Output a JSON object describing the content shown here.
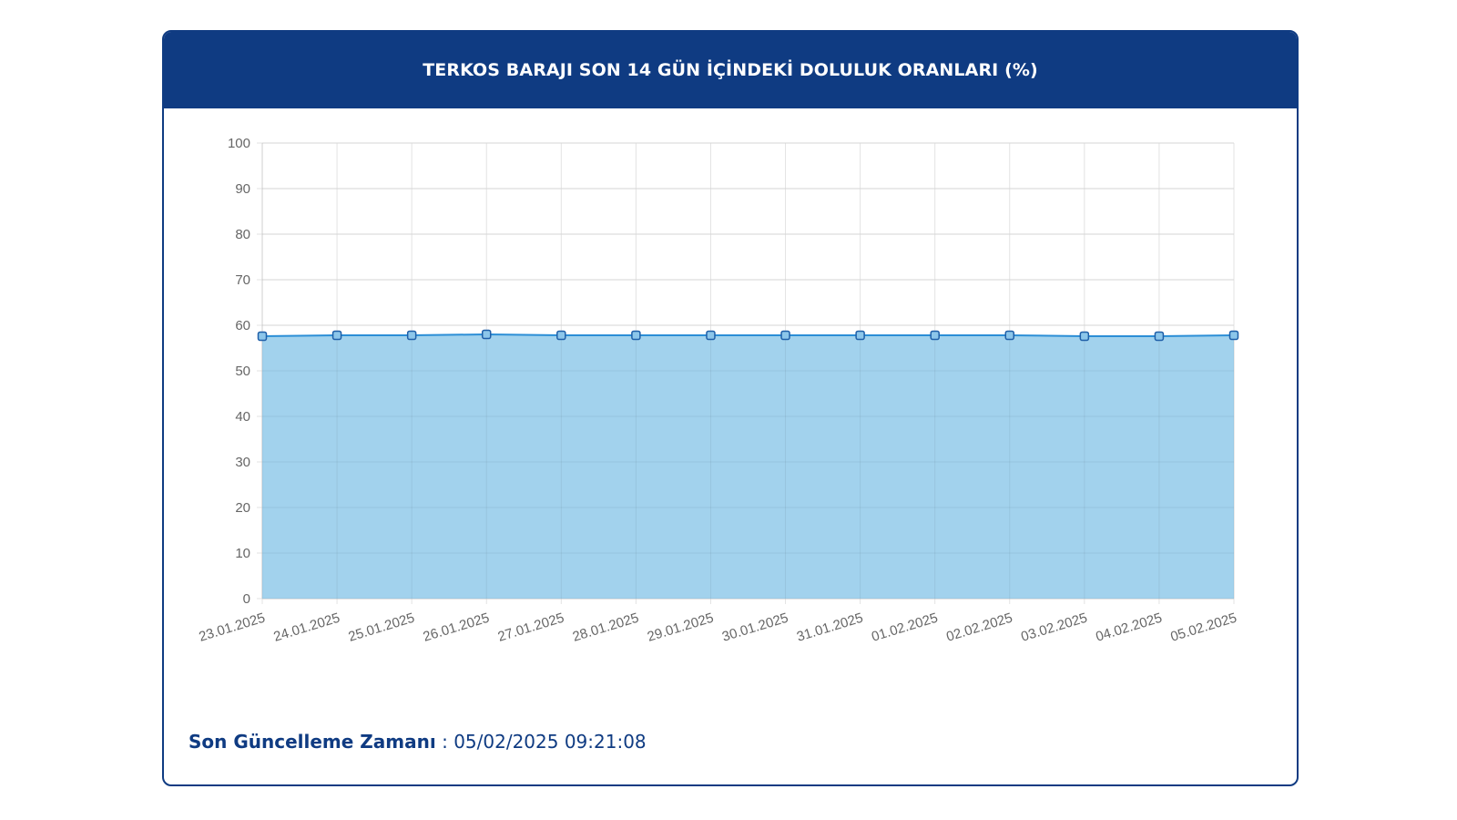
{
  "header": {
    "title": "TERKOS BARAJI SON 14 GÜN İÇİNDEKİ DOLULUK ORANLARI (%)"
  },
  "footer": {
    "label": "Son Güncelleme Zamanı",
    "separator": " : ",
    "value": "05/02/2025 09:21:08"
  },
  "colors": {
    "header_bg": "#0f3b82",
    "area_fill": "#9dd0ec",
    "line": "#2b8ed6",
    "marker_stroke": "#1f5fa8"
  },
  "chart_data": {
    "type": "area",
    "categories": [
      "23.01.2025",
      "24.01.2025",
      "25.01.2025",
      "26.01.2025",
      "27.01.2025",
      "28.01.2025",
      "29.01.2025",
      "30.01.2025",
      "31.01.2025",
      "01.02.2025",
      "02.02.2025",
      "03.02.2025",
      "04.02.2025",
      "05.02.2025"
    ],
    "series": [
      {
        "values": [
          57.6,
          57.8,
          57.8,
          58.0,
          57.8,
          57.8,
          57.8,
          57.8,
          57.8,
          57.8,
          57.8,
          57.6,
          57.6,
          57.8
        ]
      }
    ],
    "yticks": [
      "0",
      "10",
      "20",
      "30",
      "40",
      "50",
      "60",
      "70",
      "80",
      "90",
      "100"
    ],
    "ylim": [
      0,
      100
    ],
    "grid": true,
    "legend": "none"
  }
}
